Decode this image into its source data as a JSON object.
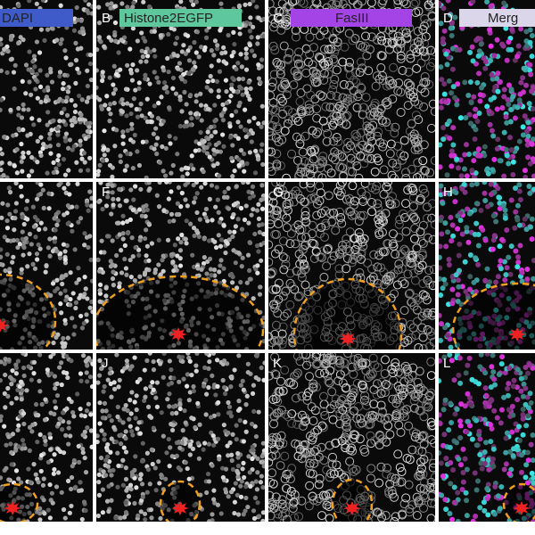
{
  "panels": {
    "A": {
      "label": "DAPI"
    },
    "B": {
      "letter": "B",
      "label": "Histone2EGFP"
    },
    "C": {
      "letter": "C",
      "label": "FasIII"
    },
    "D": {
      "letter": "D",
      "label": "Merg"
    },
    "F": {
      "letter": "F"
    },
    "G": {
      "letter": "G"
    },
    "H": {
      "letter": "H"
    },
    "J": {
      "letter": "J"
    },
    "K": {
      "letter": "K"
    },
    "L": {
      "letter": "L"
    }
  }
}
